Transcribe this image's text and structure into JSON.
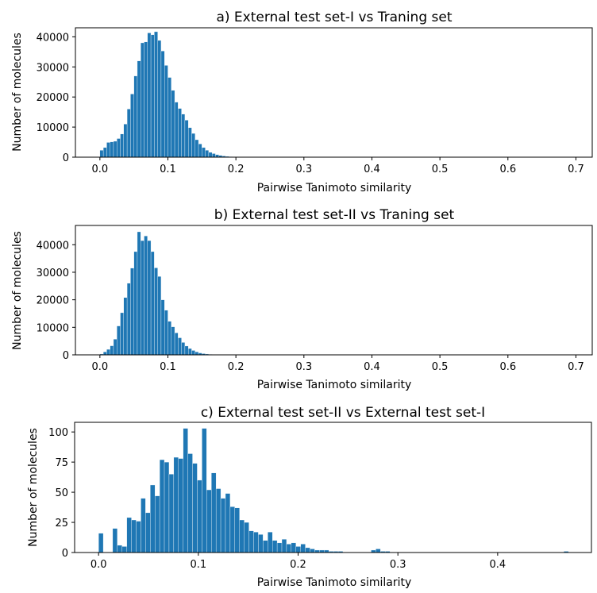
{
  "bar_color": "#1f77b4",
  "chart_data": [
    {
      "type": "bar",
      "title": "a) External test set-I vs Traning set",
      "xlabel": "Pairwise Tanimoto similarity",
      "ylabel": "Number of molecules",
      "xlim": [
        -0.036,
        0.724
      ],
      "ylim": [
        0,
        43000
      ],
      "xticks": [
        0.0,
        0.1,
        0.2,
        0.3,
        0.4,
        0.5,
        0.6,
        0.7
      ],
      "yticks": [
        0,
        10000,
        20000,
        30000,
        40000
      ],
      "bin_start": 0.0,
      "bin_width": 0.005,
      "values": [
        2300,
        3200,
        4900,
        5100,
        5300,
        6200,
        7700,
        11000,
        16000,
        21000,
        27000,
        32000,
        38000,
        38300,
        41300,
        40700,
        41700,
        38800,
        35300,
        30500,
        26500,
        22200,
        18300,
        16200,
        14300,
        12300,
        9800,
        7900,
        5800,
        4400,
        3200,
        2300,
        1600,
        1200,
        850,
        600,
        400,
        270,
        180,
        120,
        80,
        55,
        38,
        25,
        17,
        12,
        8,
        5,
        4,
        3,
        2,
        2,
        1,
        1,
        1,
        1,
        0,
        0,
        0,
        0
      ]
    },
    {
      "type": "bar",
      "title": "b) External test set-II vs Traning set",
      "xlabel": "Pairwise Tanimoto similarity",
      "ylabel": "Number of molecules",
      "xlim": [
        -0.036,
        0.724
      ],
      "ylim": [
        0,
        47000
      ],
      "xticks": [
        0.0,
        0.1,
        0.2,
        0.3,
        0.4,
        0.5,
        0.6,
        0.7
      ],
      "yticks": [
        0,
        10000,
        20000,
        30000,
        40000
      ],
      "bin_start": 0.0,
      "bin_width": 0.005,
      "values": [
        300,
        1100,
        2000,
        3300,
        5700,
        10500,
        15300,
        20800,
        26000,
        31500,
        37500,
        44700,
        41500,
        43200,
        41500,
        37500,
        31600,
        28500,
        20000,
        16200,
        12200,
        10200,
        8000,
        6200,
        4500,
        3200,
        2300,
        1600,
        1100,
        700,
        450,
        300,
        190,
        120,
        80,
        50,
        30,
        20,
        12,
        8,
        5,
        3,
        2,
        1,
        1
      ]
    },
    {
      "type": "bar",
      "title": "c) External test set-II vs External test set-I",
      "xlabel": "Pairwise Tanimoto similarity",
      "ylabel": "Number of molecules",
      "xlim": [
        -0.024,
        0.494
      ],
      "ylim": [
        0,
        108
      ],
      "xticks": [
        0.0,
        0.1,
        0.2,
        0.3,
        0.4
      ],
      "yticks": [
        0,
        25,
        50,
        75,
        100
      ],
      "bin_start": 0.0,
      "bin_width": 0.00471,
      "values": [
        16,
        0,
        0,
        20,
        6,
        5,
        29,
        27,
        26,
        45,
        33,
        56,
        47,
        77,
        75,
        65,
        79,
        78,
        103,
        82,
        74,
        60,
        103,
        52,
        66,
        53,
        45,
        49,
        38,
        37,
        27,
        25,
        18,
        17,
        15,
        10,
        17,
        10,
        8,
        11,
        7,
        8,
        5,
        7,
        4,
        3,
        2,
        2,
        2,
        1,
        1,
        1,
        0,
        0,
        0,
        0,
        0,
        0,
        2,
        3,
        1,
        1,
        0,
        0,
        0,
        0,
        0,
        0,
        0,
        0,
        0,
        0,
        0,
        0,
        0,
        0,
        0,
        0,
        0,
        0,
        0,
        0,
        0,
        0,
        0,
        0,
        0,
        0,
        0,
        0,
        0,
        0,
        0,
        0,
        0,
        0,
        0,
        0,
        0,
        1
      ]
    }
  ]
}
